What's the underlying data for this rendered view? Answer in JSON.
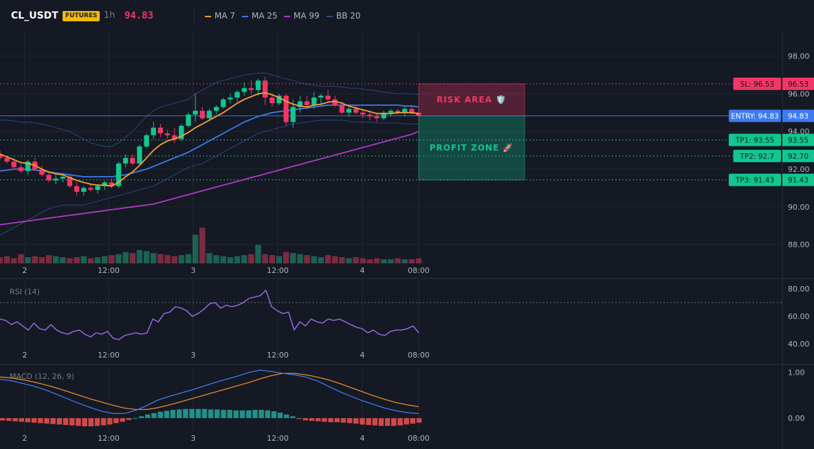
{
  "header": {
    "symbol": "CL_USDT",
    "badge": "FUTURES",
    "interval": "1h",
    "last_price": "94.83",
    "legend": [
      {
        "label": "MA 7",
        "color": "#f7a035"
      },
      {
        "label": "MA 25",
        "color": "#3d7bf0"
      },
      {
        "label": "MA 99",
        "color": "#b03bc4"
      },
      {
        "label": "BB 20",
        "color": "#2f4a8a"
      }
    ]
  },
  "colors": {
    "up": "#13c690",
    "down": "#f23665",
    "grid": "#22262f",
    "axis": "#2a2e39",
    "text": "#b2b5be"
  },
  "chart_data": [
    {
      "type": "candlestick",
      "x_tick_labels": [
        "2",
        "12:00",
        "3",
        "12:00",
        "4",
        "08:00"
      ],
      "y_ticks": [
        "98.00",
        "96.00",
        "94.00",
        "92.00",
        "90.00",
        "88.00"
      ],
      "ylim": [
        87.0,
        99.3
      ],
      "ohlc": [
        [
          92.8,
          93.0,
          92.5,
          92.6
        ],
        [
          92.6,
          92.7,
          92.3,
          92.4
        ],
        [
          92.4,
          92.6,
          92.0,
          92.1
        ],
        [
          92.1,
          92.3,
          91.8,
          91.9
        ],
        [
          91.9,
          92.5,
          91.7,
          92.4
        ],
        [
          92.4,
          92.6,
          91.9,
          92.0
        ],
        [
          92.0,
          92.2,
          91.6,
          91.7
        ],
        [
          91.7,
          91.9,
          91.3,
          91.4
        ],
        [
          91.4,
          91.7,
          91.2,
          91.5
        ],
        [
          91.5,
          91.8,
          91.3,
          91.6
        ],
        [
          91.6,
          91.7,
          91.0,
          91.1
        ],
        [
          91.1,
          91.3,
          90.6,
          90.8
        ],
        [
          90.8,
          91.1,
          90.6,
          91.0
        ],
        [
          91.0,
          91.2,
          90.8,
          90.9
        ],
        [
          90.9,
          91.2,
          90.7,
          91.1
        ],
        [
          91.1,
          91.4,
          90.9,
          91.3
        ],
        [
          91.3,
          91.5,
          91.0,
          91.1
        ],
        [
          91.1,
          92.4,
          91.0,
          92.3
        ],
        [
          92.3,
          92.8,
          92.1,
          92.6
        ],
        [
          92.6,
          92.8,
          92.2,
          92.3
        ],
        [
          92.3,
          93.3,
          92.2,
          93.2
        ],
        [
          93.2,
          93.9,
          93.1,
          93.8
        ],
        [
          93.8,
          94.5,
          93.6,
          94.2
        ],
        [
          94.2,
          94.4,
          93.7,
          93.9
        ],
        [
          93.9,
          94.1,
          93.6,
          93.8
        ],
        [
          93.8,
          94.2,
          93.4,
          93.6
        ],
        [
          93.6,
          94.4,
          93.5,
          94.3
        ],
        [
          94.3,
          95.0,
          94.2,
          94.9
        ],
        [
          94.9,
          96.0,
          94.5,
          95.1
        ],
        [
          95.1,
          95.3,
          94.6,
          94.7
        ],
        [
          94.7,
          95.2,
          94.6,
          95.1
        ],
        [
          95.1,
          95.4,
          94.9,
          95.3
        ],
        [
          95.3,
          95.8,
          95.2,
          95.7
        ],
        [
          95.7,
          96.0,
          95.5,
          95.8
        ],
        [
          95.8,
          96.2,
          95.6,
          96.1
        ],
        [
          96.1,
          96.6,
          95.9,
          96.3
        ],
        [
          96.3,
          96.7,
          96.0,
          96.2
        ],
        [
          96.2,
          96.8,
          95.9,
          96.7
        ],
        [
          96.7,
          96.9,
          95.4,
          95.8
        ],
        [
          95.8,
          96.0,
          95.3,
          95.5
        ],
        [
          95.5,
          96.0,
          95.4,
          95.9
        ],
        [
          95.9,
          96.0,
          94.3,
          94.5
        ],
        [
          94.5,
          95.7,
          94.2,
          95.3
        ],
        [
          95.3,
          95.9,
          95.0,
          95.6
        ],
        [
          95.6,
          95.9,
          95.2,
          95.4
        ],
        [
          95.4,
          96.1,
          95.2,
          95.8
        ],
        [
          95.8,
          96.0,
          95.4,
          95.9
        ],
        [
          95.9,
          96.2,
          95.6,
          95.7
        ],
        [
          95.7,
          95.9,
          95.3,
          95.4
        ],
        [
          95.4,
          95.6,
          94.9,
          95.0
        ],
        [
          95.0,
          95.3,
          94.8,
          95.2
        ],
        [
          95.2,
          95.4,
          94.9,
          95.0
        ],
        [
          95.0,
          95.2,
          94.7,
          94.9
        ],
        [
          94.9,
          95.1,
          94.6,
          94.8
        ],
        [
          94.8,
          95.0,
          94.5,
          94.7
        ],
        [
          94.7,
          95.1,
          94.6,
          95.0
        ],
        [
          95.0,
          95.2,
          94.8,
          95.1
        ],
        [
          95.1,
          95.2,
          94.9,
          95.0
        ],
        [
          95.0,
          95.3,
          94.8,
          95.2
        ],
        [
          95.2,
          95.4,
          94.9,
          95.0
        ],
        [
          95.0,
          95.2,
          94.7,
          94.83
        ]
      ],
      "volume": [
        6,
        7,
        5,
        9,
        6,
        7,
        6,
        8,
        7,
        6,
        5,
        6,
        7,
        5,
        6,
        7,
        8,
        9,
        11,
        10,
        13,
        12,
        10,
        9,
        8,
        7,
        8,
        9,
        28,
        35,
        10,
        8,
        7,
        6,
        7,
        8,
        9,
        18,
        9,
        8,
        7,
        11,
        10,
        9,
        8,
        7,
        6,
        8,
        7,
        6,
        5,
        6,
        5,
        4,
        5,
        4,
        4,
        5,
        4,
        4,
        5
      ],
      "ma7": [
        92.8,
        92.65,
        92.5,
        92.35,
        92.3,
        92.2,
        92.0,
        91.85,
        91.75,
        91.7,
        91.55,
        91.4,
        91.3,
        91.2,
        91.15,
        91.15,
        91.1,
        91.3,
        91.6,
        91.85,
        92.2,
        92.6,
        93.0,
        93.3,
        93.5,
        93.6,
        93.75,
        93.95,
        94.2,
        94.4,
        94.6,
        94.8,
        95.0,
        95.25,
        95.5,
        95.7,
        95.85,
        96.0,
        96.05,
        95.95,
        95.8,
        95.6,
        95.45,
        95.35,
        95.3,
        95.4,
        95.45,
        95.55,
        95.6,
        95.5,
        95.35,
        95.25,
        95.15,
        95.05,
        94.95,
        94.95,
        94.95,
        95.0,
        95.0,
        95.0,
        94.95
      ],
      "ma25": [
        91.9,
        91.95,
        92.0,
        92.0,
        92.0,
        91.95,
        91.9,
        91.85,
        91.8,
        91.75,
        91.7,
        91.65,
        91.6,
        91.6,
        91.6,
        91.6,
        91.6,
        91.65,
        91.7,
        91.8,
        91.9,
        92.0,
        92.15,
        92.3,
        92.45,
        92.6,
        92.75,
        92.9,
        93.1,
        93.3,
        93.5,
        93.7,
        93.9,
        94.1,
        94.3,
        94.5,
        94.65,
        94.8,
        94.9,
        95.0,
        95.05,
        95.1,
        95.15,
        95.2,
        95.25,
        95.3,
        95.35,
        95.4,
        95.4,
        95.4,
        95.4,
        95.4,
        95.4,
        95.4,
        95.4,
        95.4,
        95.4,
        95.4,
        95.35,
        95.35,
        95.3
      ],
      "ma99": [
        89.05,
        89.1,
        89.15,
        89.2,
        89.25,
        89.3,
        89.35,
        89.4,
        89.45,
        89.5,
        89.55,
        89.6,
        89.65,
        89.7,
        89.75,
        89.8,
        89.85,
        89.9,
        89.95,
        90.0,
        90.05,
        90.1,
        90.15,
        90.25,
        90.35,
        90.45,
        90.55,
        90.65,
        90.75,
        90.85,
        90.95,
        91.05,
        91.15,
        91.25,
        91.35,
        91.45,
        91.55,
        91.65,
        91.75,
        91.85,
        91.95,
        92.05,
        92.15,
        92.25,
        92.35,
        92.45,
        92.55,
        92.65,
        92.75,
        92.85,
        92.95,
        93.05,
        93.15,
        93.25,
        93.35,
        93.45,
        93.55,
        93.65,
        93.75,
        93.85,
        94.0
      ],
      "bb_upper": [
        94.6,
        94.6,
        94.55,
        94.5,
        94.5,
        94.45,
        94.4,
        94.3,
        94.2,
        94.1,
        94.0,
        93.8,
        93.6,
        93.4,
        93.3,
        93.2,
        93.2,
        93.4,
        93.7,
        94.0,
        94.4,
        94.8,
        95.1,
        95.3,
        95.4,
        95.5,
        95.6,
        95.7,
        96.0,
        96.2,
        96.4,
        96.6,
        96.7,
        96.8,
        96.9,
        97.0,
        97.05,
        97.1,
        97.1,
        97.0,
        96.9,
        96.8,
        96.7,
        96.6,
        96.5,
        96.45,
        96.4,
        96.4,
        96.4,
        96.35,
        96.3,
        96.3,
        96.25,
        96.2,
        96.15,
        96.1,
        96.05,
        96.0,
        96.0,
        96.0,
        95.95
      ],
      "bb_lower": [
        88.5,
        88.7,
        88.9,
        89.1,
        89.3,
        89.5,
        89.7,
        89.9,
        90.0,
        90.1,
        90.1,
        90.1,
        90.1,
        90.2,
        90.3,
        90.4,
        90.5,
        90.6,
        90.7,
        90.8,
        90.9,
        91.0,
        91.1,
        91.3,
        91.5,
        91.7,
        91.9,
        92.1,
        92.2,
        92.3,
        92.5,
        92.7,
        92.9,
        93.1,
        93.3,
        93.5,
        93.7,
        93.9,
        94.0,
        94.1,
        94.2,
        94.3,
        94.4,
        94.45,
        94.5,
        94.55,
        94.6,
        94.6,
        94.6,
        94.6,
        94.55,
        94.5,
        94.5,
        94.5,
        94.45,
        94.45,
        94.45,
        94.45,
        94.4,
        94.4,
        94.4
      ],
      "levels": [
        {
          "label": "SL: 96.53",
          "price_label": "96.53",
          "value": 96.53,
          "color": "#f23665"
        },
        {
          "label": "ENTRY: 94.83",
          "price_label": "94.83",
          "value": 94.83,
          "color": "#3d7bf0"
        },
        {
          "label": "TP1: 93.55",
          "price_label": "93.55",
          "value": 93.55,
          "color": "#13c690"
        },
        {
          "label": "TP2: 92.7",
          "price_label": "92.70",
          "value": 92.7,
          "color": "#13c690"
        },
        {
          "label": "TP3: 91.43",
          "price_label": "91.43",
          "value": 91.43,
          "color": "#13c690"
        }
      ],
      "zones": [
        {
          "label": "RISK AREA 🛡️",
          "from": 94.83,
          "to": 96.53,
          "color": "#f23665"
        },
        {
          "label": "PROFIT ZONE 🚀",
          "from": 91.43,
          "to": 94.83,
          "color": "#13c690"
        }
      ]
    },
    {
      "type": "line",
      "title": "RSI (14)",
      "y_ticks": [
        "80.00",
        "60.00",
        "40.00"
      ],
      "ylim": [
        35,
        85
      ],
      "overbought": 70,
      "x_tick_labels": [
        "2",
        "12:00",
        "3",
        "12:00",
        "4",
        "08:00"
      ],
      "values": [
        58,
        57,
        54,
        56,
        53,
        50,
        55,
        51,
        50,
        54,
        50,
        48,
        47,
        49,
        50,
        47,
        45,
        48,
        47,
        49,
        44,
        43,
        46,
        47,
        48,
        47,
        48,
        58,
        56,
        62,
        63,
        67,
        66,
        64,
        60,
        62,
        65,
        69,
        70,
        66,
        68,
        67,
        68,
        70,
        73,
        74,
        75,
        79,
        67,
        64,
        62,
        63,
        50,
        56,
        53,
        58,
        56,
        55,
        58,
        57,
        58,
        56,
        54,
        52,
        51,
        48,
        50,
        47,
        46,
        49,
        50,
        50,
        51,
        53,
        48
      ]
    },
    {
      "type": "bar",
      "title": "MACD (12, 26, 9)",
      "y_ticks": [
        "1.00",
        "0.00"
      ],
      "ylim": [
        -0.3,
        1.1
      ],
      "x_tick_labels": [
        "2",
        "12:00",
        "3",
        "12:00",
        "4",
        "08:00"
      ],
      "histogram": [
        -0.05,
        -0.06,
        -0.07,
        -0.08,
        -0.09,
        -0.1,
        -0.11,
        -0.12,
        -0.13,
        -0.14,
        -0.15,
        -0.16,
        -0.17,
        -0.18,
        -0.18,
        -0.17,
        -0.16,
        -0.14,
        -0.11,
        -0.08,
        -0.04,
        0.0,
        0.04,
        0.08,
        0.11,
        0.14,
        0.16,
        0.18,
        0.19,
        0.2,
        0.2,
        0.2,
        0.2,
        0.19,
        0.19,
        0.18,
        0.18,
        0.17,
        0.17,
        0.17,
        0.18,
        0.18,
        0.17,
        0.15,
        0.12,
        0.08,
        0.04,
        -0.02,
        -0.05,
        -0.06,
        -0.07,
        -0.08,
        -0.09,
        -0.09,
        -0.1,
        -0.11,
        -0.12,
        -0.14,
        -0.15,
        -0.16,
        -0.17,
        -0.17,
        -0.17,
        -0.16,
        -0.14,
        -0.12,
        -0.1
      ],
      "macd": [
        0.85,
        0.82,
        0.76,
        0.7,
        0.62,
        0.52,
        0.42,
        0.32,
        0.23,
        0.15,
        0.1,
        0.1,
        0.17,
        0.28,
        0.4,
        0.48,
        0.55,
        0.62,
        0.7,
        0.78,
        0.85,
        0.92,
        1.0,
        1.05,
        1.02,
        0.98,
        0.95,
        0.9,
        0.82,
        0.7,
        0.58,
        0.48,
        0.38,
        0.3,
        0.22,
        0.16,
        0.12,
        0.1
      ],
      "signal": [
        0.9,
        0.88,
        0.84,
        0.79,
        0.73,
        0.66,
        0.58,
        0.5,
        0.42,
        0.35,
        0.28,
        0.22,
        0.19,
        0.19,
        0.23,
        0.29,
        0.36,
        0.43,
        0.5,
        0.57,
        0.64,
        0.71,
        0.78,
        0.86,
        0.93,
        0.98,
        0.98,
        0.95,
        0.9,
        0.84,
        0.76,
        0.67,
        0.58,
        0.49,
        0.41,
        0.34,
        0.29,
        0.25
      ]
    }
  ]
}
